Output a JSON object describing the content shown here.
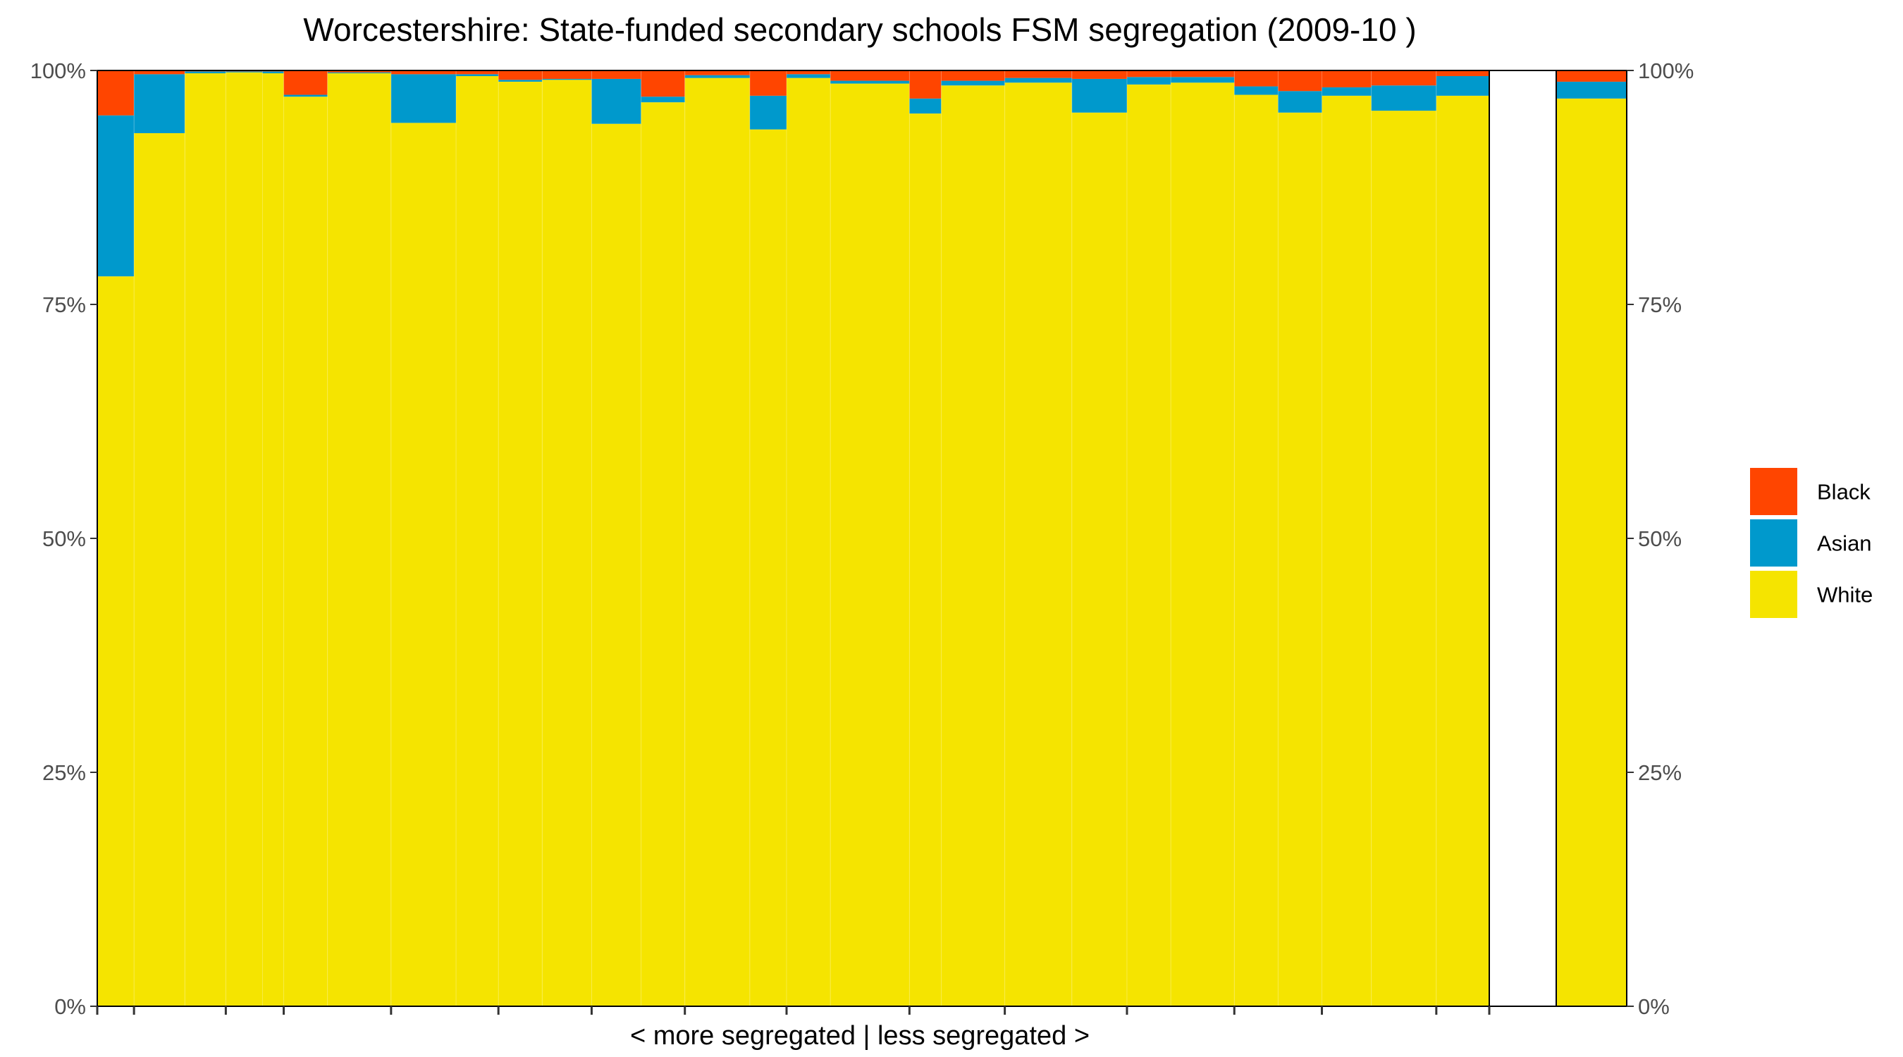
{
  "chart_data": {
    "type": "bar",
    "stacked": true,
    "variable_width": true,
    "title": "Worcestershire: State-funded secondary schools FSM segregation (2009-10 )",
    "xlabel": "< more segregated | less segregated >",
    "ylabel": "",
    "ylim": [
      0,
      100
    ],
    "y_ticks": [
      "0%",
      "25%",
      "50%",
      "75%",
      "100%"
    ],
    "y_axis_secondary": true,
    "grid": false,
    "legend_position": "right",
    "series": [
      {
        "name": "Black",
        "color": "#FF4500"
      },
      {
        "name": "Asian",
        "color": "#0099CC"
      },
      {
        "name": "White",
        "color": "#F5E400"
      }
    ],
    "stack_order_bottom_to_top": [
      "White",
      "Asian",
      "Black"
    ],
    "schools": [
      {
        "width": 0.52,
        "white": 78.0,
        "asian": 17.2,
        "black": 4.8
      },
      {
        "width": 0.72,
        "white": 93.3,
        "asian": 6.3,
        "black": 0.4
      },
      {
        "width": 0.58,
        "white": 99.7,
        "asian": 0.2,
        "black": 0.1
      },
      {
        "width": 0.52,
        "white": 99.8,
        "asian": 0.1,
        "black": 0.1
      },
      {
        "width": 0.3,
        "white": 99.7,
        "asian": 0.2,
        "black": 0.1
      },
      {
        "width": 0.62,
        "white": 97.2,
        "asian": 0.2,
        "black": 2.6
      },
      {
        "width": 0.9,
        "white": 99.7,
        "asian": 0.1,
        "black": 0.2
      },
      {
        "width": 0.92,
        "white": 94.4,
        "asian": 5.2,
        "black": 0.4
      },
      {
        "width": 0.6,
        "white": 99.4,
        "asian": 0.2,
        "black": 0.4
      },
      {
        "width": 0.62,
        "white": 98.8,
        "asian": 0.2,
        "black": 1.0
      },
      {
        "width": 0.7,
        "white": 99.0,
        "asian": 0.1,
        "black": 0.9
      },
      {
        "width": 0.7,
        "white": 94.3,
        "asian": 4.8,
        "black": 0.9
      },
      {
        "width": 0.62,
        "white": 96.6,
        "asian": 0.6,
        "black": 2.8
      },
      {
        "width": 0.92,
        "white": 99.2,
        "asian": 0.3,
        "black": 0.5
      },
      {
        "width": 0.52,
        "white": 93.7,
        "asian": 3.6,
        "black": 2.7
      },
      {
        "width": 0.62,
        "white": 99.2,
        "asian": 0.4,
        "black": 0.4
      },
      {
        "width": 1.12,
        "white": 98.6,
        "asian": 0.3,
        "black": 1.1
      },
      {
        "width": 0.45,
        "white": 95.4,
        "asian": 1.6,
        "black": 3.0
      },
      {
        "width": 0.9,
        "white": 98.4,
        "asian": 0.5,
        "black": 1.1
      },
      {
        "width": 0.95,
        "white": 98.7,
        "asian": 0.5,
        "black": 0.8
      },
      {
        "width": 0.78,
        "white": 95.5,
        "asian": 3.6,
        "black": 0.9
      },
      {
        "width": 0.62,
        "white": 98.5,
        "asian": 0.8,
        "black": 0.7
      },
      {
        "width": 0.9,
        "white": 98.7,
        "asian": 0.6,
        "black": 0.7
      },
      {
        "width": 0.62,
        "white": 97.4,
        "asian": 0.9,
        "black": 1.7
      },
      {
        "width": 0.62,
        "white": 95.5,
        "asian": 2.3,
        "black": 2.2
      },
      {
        "width": 0.7,
        "white": 97.3,
        "asian": 0.9,
        "black": 1.8
      },
      {
        "width": 0.92,
        "white": 95.7,
        "asian": 2.7,
        "black": 1.6
      },
      {
        "width": 0.75,
        "white": 97.3,
        "asian": 2.1,
        "black": 0.6
      }
    ],
    "overall": {
      "white": 97.0,
      "asian": 1.8,
      "black": 1.2
    }
  }
}
